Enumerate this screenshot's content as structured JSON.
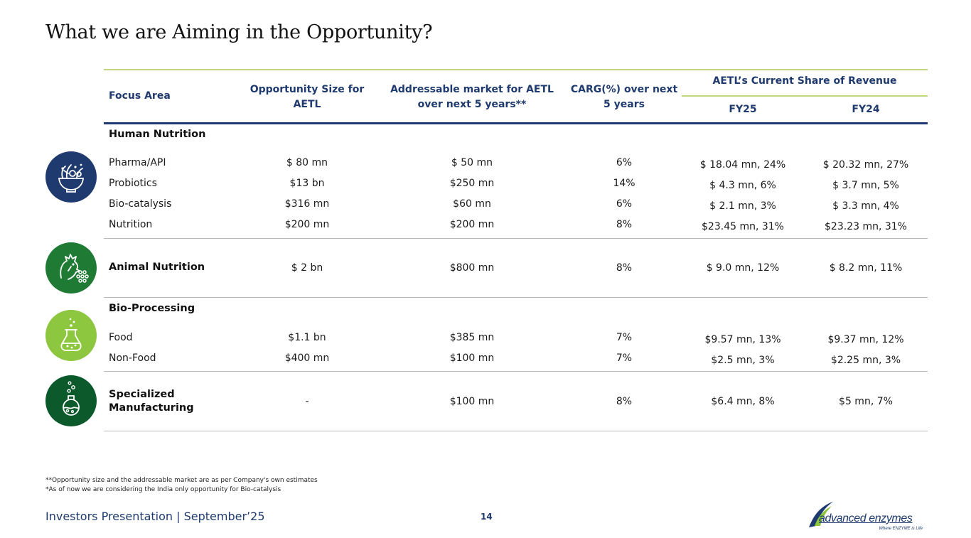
{
  "title": "What we are Aiming in the Opportunity?",
  "header": {
    "focus_area": "Focus Area",
    "opportunity_size": "Opportunity Size for AETL",
    "addressable_market": "Addressable market for AETL over next 5 years**",
    "cagr": "CARG(%) over next 5 years",
    "current_share": "AETL’s Current Share of Revenue",
    "fy25": "FY25",
    "fy24": "FY24"
  },
  "groups": {
    "human_nutrition": {
      "title": "Human Nutrition",
      "rows": [
        {
          "name": "Pharma/API",
          "opportunity": "$ 80 mn",
          "market": "$ 50 mn",
          "cagr": "6%",
          "fy25": "$ 18.04 mn, 24%",
          "fy24": "$ 20.32 mn, 27%"
        },
        {
          "name": "Probiotics",
          "opportunity": "$13 bn",
          "market": "$250 mn",
          "cagr": "14%",
          "fy25": "$ 4.3 mn, 6%",
          "fy24": "$ 3.7 mn, 5%"
        },
        {
          "name": "Bio-catalysis",
          "opportunity": "$316 mn",
          "market": "$60 mn",
          "cagr": "6%",
          "fy25": "$ 2.1 mn, 3%",
          "fy24": "$ 3.3 mn, 4%"
        },
        {
          "name": "Nutrition",
          "opportunity": "$200 mn",
          "market": "$200 mn",
          "cagr": "8%",
          "fy25": "$23.45 mn, 31%",
          "fy24": "$23.23 mn, 31%"
        }
      ]
    },
    "animal_nutrition": {
      "title": "Animal Nutrition",
      "opportunity": "$ 2 bn",
      "market": "$800 mn",
      "cagr": "8%",
      "fy25": "$ 9.0 mn, 12%",
      "fy24": "$ 8.2 mn, 11%"
    },
    "bio_processing": {
      "title": "Bio-Processing",
      "rows": [
        {
          "name": "Food",
          "opportunity": "$1.1 bn",
          "market": "$385 mn",
          "cagr": "7%",
          "fy25": "$9.57 mn, 13%",
          "fy24": "$9.37 mn, 12%"
        },
        {
          "name": "Non-Food",
          "opportunity": "$400 mn",
          "market": "$100 mn",
          "cagr": "7%",
          "fy25": "$2.5 mn, 3%",
          "fy24": "$2.25 mn, 3%"
        }
      ]
    },
    "specialized_manufacturing": {
      "title_line1": "Specialized",
      "title_line2": "Manufacturing",
      "opportunity": "-",
      "market": "$100 mn",
      "cagr": "8%",
      "fy25": "$6.4 mn, 8%",
      "fy24": "$5 mn, 7%"
    }
  },
  "footnotes": {
    "note1": "**Opportunity size and the addressable market are as per Company's own estimates",
    "note2": "*As of now we are considering the India only opportunity for Bio-catalysis"
  },
  "footer": {
    "left": "Investors Presentation | September’25",
    "page": "14",
    "logo_text": "advanced enzymes",
    "logo_tagline": "Where ENZYME is Life"
  },
  "colors": {
    "navy": "#1e3a6e",
    "green_dark": "#0c5a2c",
    "green_mid": "#2a8a3a",
    "green_light": "#8dc63f",
    "rule_green": "#b5cc6a"
  }
}
